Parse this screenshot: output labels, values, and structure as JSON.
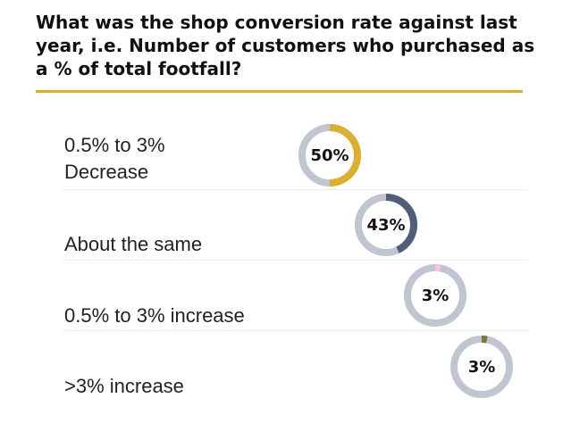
{
  "title": "What was the shop conversion rate against last year, i.e. Number of customers who purchased as a % of total footfall?",
  "colors": {
    "accent": "#d9b02f",
    "ring_bg": "#c0c5d1"
  },
  "chart_data": {
    "type": "donut-list",
    "title": "What was the shop conversion rate against last year, i.e. Number of customers who purchased as a % of total footfall?",
    "categories": [
      "0.5% to 3%\nDecrease",
      "About the same",
      "0.5% to 3% increase",
      ">3% increase"
    ],
    "values": [
      50,
      43,
      3,
      3
    ],
    "value_labels": [
      "50%",
      "43%",
      "3%",
      "3%"
    ],
    "colors": [
      "#d9b02f",
      "#4f5f77",
      "#f2c7cf",
      "#7a7a2e"
    ],
    "unit": "%"
  }
}
